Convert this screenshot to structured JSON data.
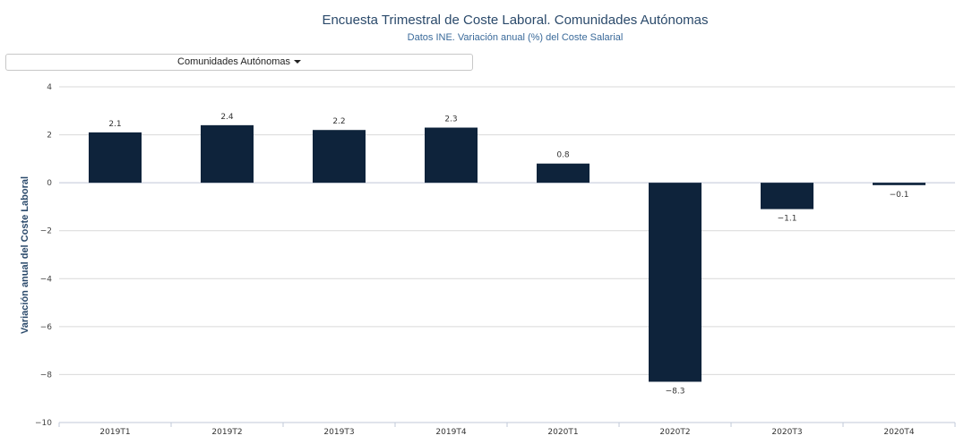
{
  "header": {
    "title": "Encuesta Trimestral de Coste Laboral. Comunidades Autónomas",
    "subtitle": "Datos INE. Variación anual (%) del Coste Salarial"
  },
  "selector": {
    "label": "Comunidades Autónomas",
    "icon": "caret-down-icon"
  },
  "colors": {
    "bar": "#0e233b",
    "grid": "#d9d9d9",
    "axis": "#c0c8d8"
  },
  "chart_data": {
    "type": "bar",
    "categories": [
      "2019T1",
      "2019T2",
      "2019T3",
      "2019T4",
      "2020T1",
      "2020T2",
      "2020T3",
      "2020T4"
    ],
    "values": [
      2.1,
      2.4,
      2.2,
      2.3,
      0.8,
      -8.3,
      -1.1,
      -0.1
    ],
    "value_labels": [
      "2.1",
      "2.4",
      "2.2",
      "2.3",
      "0.8",
      "−8.3",
      "−1.1",
      "−0.1"
    ],
    "ylabel": "Variación anual del Coste Laboral",
    "ylim": [
      -10,
      4
    ],
    "yticks": [
      4,
      2,
      0,
      -2,
      -4,
      -6,
      -8,
      -10
    ],
    "ytick_labels": [
      "4",
      "2",
      "0",
      "−2",
      "−4",
      "−6",
      "−8",
      "−10"
    ],
    "grid": true,
    "legend": "none"
  }
}
